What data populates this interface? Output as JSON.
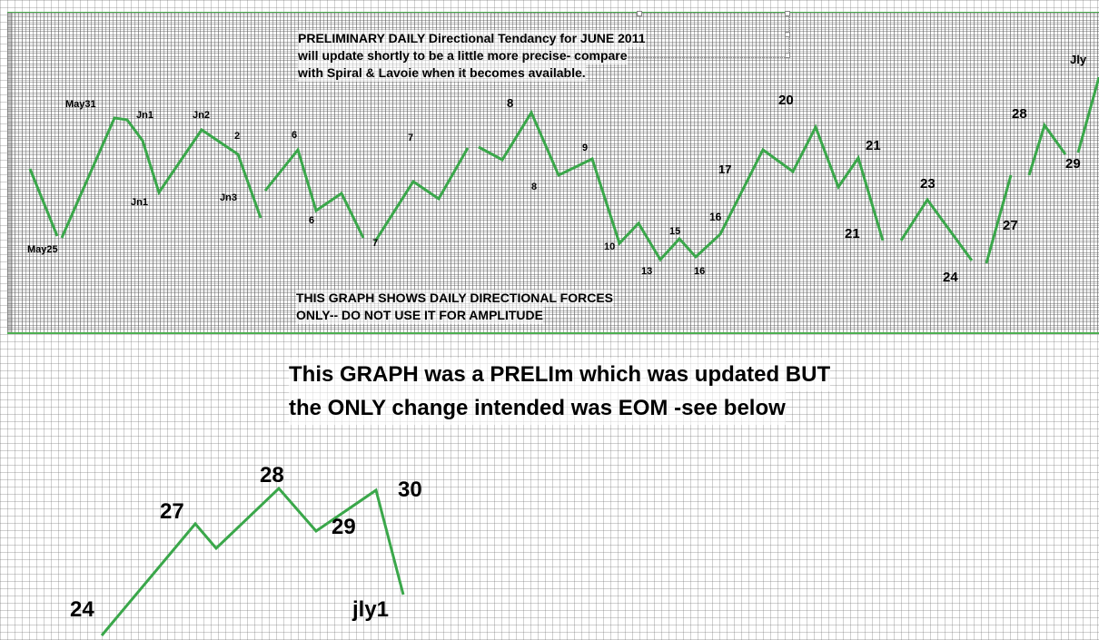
{
  "colors": {
    "line": "#3aa74a",
    "grid": "#9a9a9a",
    "panel_border": "#4caf50"
  },
  "notes": {
    "top_line1": "PRELIMINARY DAILY Directional Tendancy for JUNE 2011",
    "top_line2": "will update shortly to be a little more precise- compare",
    "top_line3": "with Spiral & Lavoie when it becomes available.",
    "bottom_line1": "THIS GRAPH SHOWS DAILY DIRECTIONAL FORCES",
    "bottom_line2": "ONLY-- DO NOT USE IT FOR AMPLITUDE"
  },
  "message": {
    "line1": "This GRAPH was a PRELIm which was updated BUT",
    "line2": "the ONLY change intended was EOM -see below"
  },
  "chart_data": [
    {
      "type": "line",
      "title": "PRELIMINARY DAILY Directional Tendancy for JUNE 2011",
      "grid": true,
      "labels": [
        "May25",
        "May31",
        "Jn1",
        "Jn1",
        "Jn2",
        "2",
        "Jn3",
        "6",
        "6",
        "7",
        "7",
        "8",
        "8",
        "9",
        "10",
        "13",
        "15",
        "16",
        "16",
        "17",
        "20",
        "21",
        "21",
        "23",
        "24",
        "27",
        "28",
        "29",
        "Jly"
      ]
    },
    {
      "type": "line",
      "title": "",
      "grid": true,
      "labels": [
        "24",
        "27",
        "28",
        "29",
        "30",
        "jly1"
      ]
    }
  ]
}
